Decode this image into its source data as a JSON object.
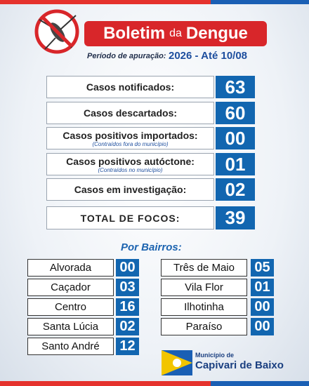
{
  "header": {
    "title": {
      "main": "Boletim",
      "small": "da",
      "end": "Dengue"
    },
    "period_label": "Período de apuração:",
    "period": "2026 - Até 10/08"
  },
  "stats": [
    {
      "label": "Casos notificados:",
      "value": "63"
    },
    {
      "label": "Casos descartados:",
      "value": "60"
    },
    {
      "label": "Casos positivos importados:",
      "note": "(Contraídos fora do município)",
      "value": "00"
    },
    {
      "label": "Casos positivos autóctone:",
      "note": "(Contraídos no município)",
      "value": "01"
    },
    {
      "label": "Casos em investigação:",
      "value": "02"
    }
  ],
  "total": {
    "label": "TOTAL DE FOCOS:",
    "value": "39"
  },
  "bairros": {
    "title": "Por Bairros:",
    "left": [
      {
        "name": "Alvorada",
        "value": "00"
      },
      {
        "name": "Caçador",
        "value": "03"
      },
      {
        "name": "Centro",
        "value": "16"
      },
      {
        "name": "Santa Lúcia",
        "value": "02"
      },
      {
        "name": "Santo André",
        "value": "12"
      }
    ],
    "right": [
      {
        "name": "Três de Maio",
        "value": "05"
      },
      {
        "name": "Vila Flor",
        "value": "01"
      },
      {
        "name": "Ilhotinha",
        "value": "00"
      },
      {
        "name": "Paraíso",
        "value": "00"
      }
    ]
  },
  "footer": {
    "line1": "Município de",
    "line2": "Capivari de Baixo"
  }
}
